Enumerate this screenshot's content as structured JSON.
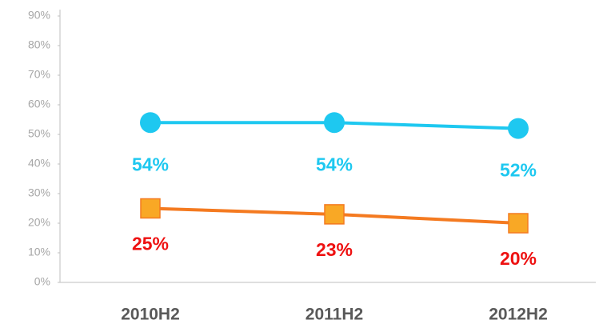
{
  "chart_data": {
    "type": "line",
    "categories": [
      "2010H2",
      "2011H2",
      "2012H2"
    ],
    "series": [
      {
        "color": "#1ec8f0",
        "marker": "circle",
        "marker_color": "#1ec8f0",
        "label_color": "#1ec8f0",
        "values": [
          54,
          54,
          52
        ],
        "value_labels": [
          "54%",
          "54%",
          "52%"
        ]
      },
      {
        "color": "#f47a20",
        "marker": "square",
        "marker_color": "#f9a825",
        "label_color": "#ee1111",
        "values": [
          25,
          23,
          20
        ],
        "value_labels": [
          "25%",
          "23%",
          "20%"
        ]
      }
    ],
    "ylim": [
      0,
      90
    ],
    "yticks": [
      {
        "value": 0,
        "label": "0%"
      },
      {
        "value": 10,
        "label": "10%"
      },
      {
        "value": 20,
        "label": "20%"
      },
      {
        "value": 30,
        "label": "30%"
      },
      {
        "value": 40,
        "label": "40%"
      },
      {
        "value": 50,
        "label": "50%"
      },
      {
        "value": 60,
        "label": "60%"
      },
      {
        "value": 70,
        "label": "70%"
      },
      {
        "value": 80,
        "label": "80%"
      },
      {
        "value": 90,
        "label": "90%"
      }
    ],
    "grid": false
  }
}
